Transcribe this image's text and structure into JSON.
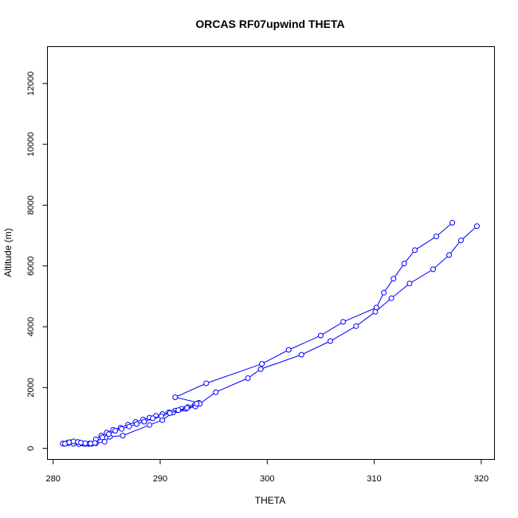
{
  "chart_data": {
    "type": "line",
    "title": "ORCAS RF07upwind THETA",
    "xlabel": "THETA",
    "ylabel": "Altitude (m)",
    "xlim": [
      279.5,
      321.2
    ],
    "ylim": [
      -350,
      13200
    ],
    "xticks": [
      280,
      290,
      300,
      310,
      320
    ],
    "yticks": [
      0,
      2000,
      4000,
      6000,
      8000,
      10000,
      12000
    ],
    "grid": false,
    "legend": "none",
    "series": [
      {
        "color": "#0000ff",
        "marker": "open-circle",
        "points": [
          [
            281.0,
            150
          ],
          [
            281.3,
            180
          ],
          [
            281.6,
            200
          ],
          [
            281.9,
            210
          ],
          [
            282.2,
            190
          ],
          [
            282.4,
            170
          ],
          [
            282.7,
            160
          ],
          [
            283.0,
            150
          ],
          [
            283.3,
            140
          ],
          [
            283.6,
            150
          ],
          [
            284.0,
            300
          ],
          [
            284.5,
            420
          ],
          [
            285.0,
            520
          ],
          [
            285.6,
            610
          ],
          [
            286.3,
            680
          ],
          [
            287.0,
            780
          ],
          [
            287.7,
            870
          ],
          [
            288.4,
            950
          ],
          [
            289.0,
            1010
          ],
          [
            289.6,
            1070
          ],
          [
            290.2,
            1130
          ],
          [
            290.8,
            1190
          ],
          [
            291.4,
            1240
          ],
          [
            292.0,
            1300
          ],
          [
            292.6,
            1360
          ],
          [
            293.2,
            1420
          ],
          [
            293.6,
            1500
          ],
          [
            291.4,
            1680
          ],
          [
            294.3,
            2140
          ],
          [
            299.5,
            2780
          ],
          [
            302.0,
            3240
          ],
          [
            305.0,
            3710
          ],
          [
            307.1,
            4160
          ],
          [
            310.2,
            4630
          ],
          [
            310.9,
            5120
          ],
          [
            311.8,
            5580
          ],
          [
            312.8,
            6080
          ],
          [
            313.8,
            6520
          ],
          [
            315.8,
            6970
          ],
          [
            317.3,
            7420
          ]
        ]
      },
      {
        "color": "#0000ff",
        "marker": "open-circle",
        "points": [
          [
            280.9,
            160
          ],
          [
            281.4,
            170
          ],
          [
            281.9,
            150
          ],
          [
            282.4,
            140
          ],
          [
            282.9,
            150
          ],
          [
            283.4,
            160
          ],
          [
            284.0,
            170
          ],
          [
            284.8,
            220
          ],
          [
            285.3,
            380
          ],
          [
            286.5,
            420
          ],
          [
            289.0,
            770
          ],
          [
            290.2,
            930
          ],
          [
            291.2,
            1180
          ],
          [
            292.4,
            1300
          ],
          [
            293.3,
            1380
          ],
          [
            293.7,
            1470
          ],
          [
            295.2,
            1850
          ],
          [
            298.2,
            2310
          ],
          [
            299.4,
            2610
          ],
          [
            303.2,
            3080
          ],
          [
            305.9,
            3530
          ],
          [
            308.3,
            4020
          ],
          [
            310.1,
            4490
          ],
          [
            311.6,
            4940
          ],
          [
            313.3,
            5420
          ],
          [
            315.5,
            5890
          ],
          [
            317.0,
            6360
          ],
          [
            318.1,
            6840
          ],
          [
            319.6,
            7310
          ]
        ]
      },
      {
        "color": "#0000ff",
        "marker": "open-circle",
        "points": [
          [
            281.1,
            150
          ],
          [
            281.5,
            200
          ],
          [
            281.9,
            230
          ],
          [
            282.3,
            210
          ],
          [
            282.6,
            190
          ],
          [
            283.0,
            170
          ],
          [
            283.5,
            160
          ],
          [
            283.9,
            180
          ],
          [
            284.6,
            360
          ],
          [
            285.2,
            470
          ],
          [
            285.8,
            580
          ],
          [
            286.4,
            640
          ],
          [
            287.1,
            720
          ],
          [
            287.8,
            800
          ],
          [
            288.5,
            880
          ],
          [
            289.3,
            990
          ],
          [
            290.1,
            1060
          ],
          [
            290.9,
            1160
          ],
          [
            291.7,
            1260
          ],
          [
            292.5,
            1330
          ],
          [
            293.4,
            1470
          ]
        ]
      }
    ]
  }
}
